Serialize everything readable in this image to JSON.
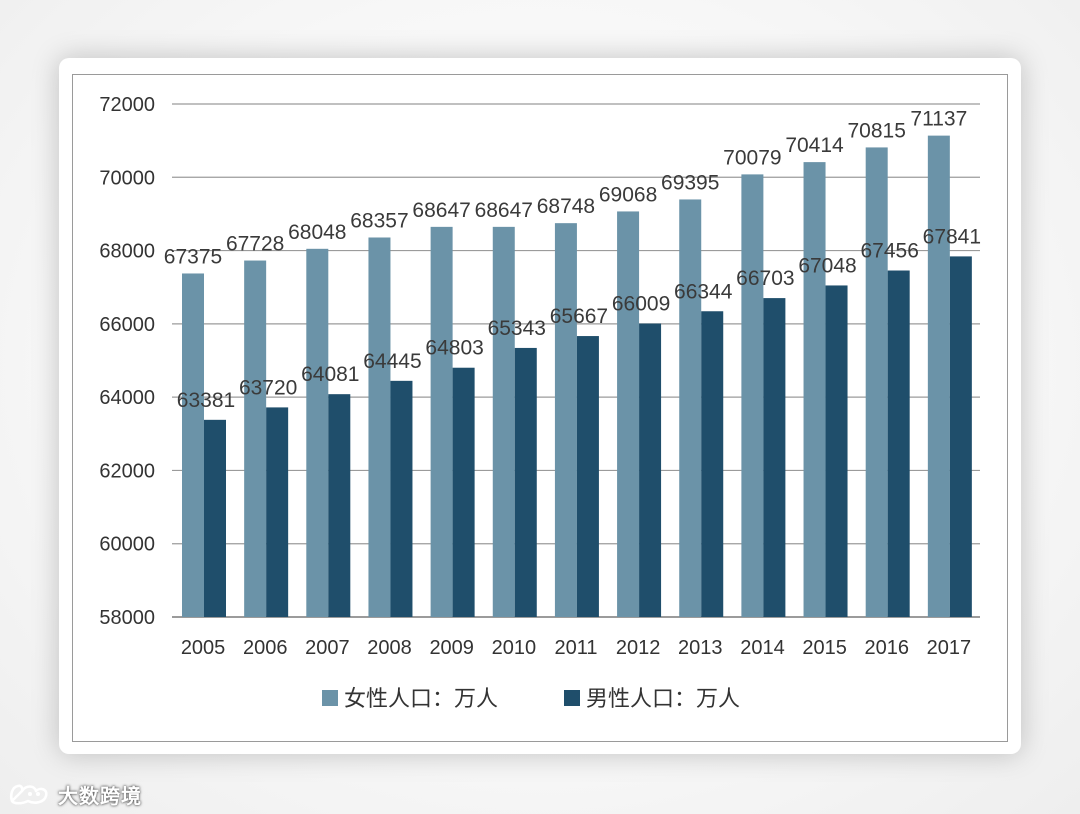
{
  "chart_data": {
    "type": "bar",
    "title": "",
    "xlabel": "",
    "ylabel": "",
    "ylim": [
      58000,
      72000
    ],
    "yticks": [
      58000,
      60000,
      62000,
      64000,
      66000,
      68000,
      70000,
      72000
    ],
    "categories": [
      "2005",
      "2006",
      "2007",
      "2008",
      "2009",
      "2010",
      "2011",
      "2012",
      "2013",
      "2014",
      "2015",
      "2016",
      "2017"
    ],
    "series": [
      {
        "name": "女性人口：万人",
        "color": "#6b93a8",
        "values": [
          67375,
          67728,
          68048,
          68357,
          68647,
          68647,
          68748,
          69068,
          69395,
          70079,
          70414,
          70815,
          71137
        ]
      },
      {
        "name": "男性人口：万人",
        "color": "#1f4e6b",
        "values": [
          63381,
          63720,
          64081,
          64445,
          64803,
          65343,
          65667,
          66009,
          66344,
          66703,
          67048,
          67456,
          67841
        ]
      }
    ],
    "grid": true,
    "legend": "bottom"
  },
  "watermark": {
    "text": "大数跨境",
    "icon": "cat-logo-icon"
  }
}
